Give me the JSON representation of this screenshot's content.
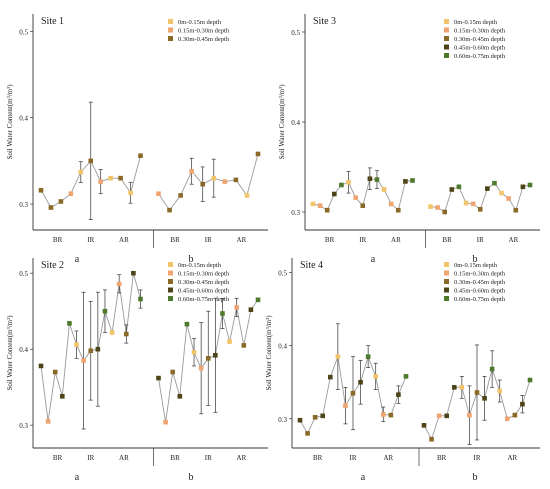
{
  "colors": {
    "d1": "#f2c46a",
    "d2": "#f0a470",
    "d3": "#8a6a26",
    "d4": "#4d4417",
    "d5": "#4e7a2c",
    "line": "#9a9a9a"
  },
  "chart_data": [
    {
      "type": "scatter",
      "title": "Site 1",
      "ylabel": "Soil Water Content(m³/m³)",
      "ylim": [
        0.27,
        0.52
      ],
      "yticks": [
        0.3,
        0.4,
        0.5
      ],
      "ytick_labels": [
        "0.3",
        "0.4",
        "0.5"
      ],
      "groups": [
        "BR",
        "IR",
        "AR"
      ],
      "panels": [
        "a",
        "b"
      ],
      "legend": [
        "0m-0.15m depth",
        "0.15m-0.30m depth",
        "0.30m-0.45m depth"
      ],
      "series_colors": [
        "d1",
        "d2",
        "d3"
      ],
      "sequences": [
        [
          {
            "y": 0.316,
            "c": 2
          },
          {
            "y": 0.296,
            "c": 2
          },
          {
            "y": 0.303,
            "c": 2
          },
          {
            "y": 0.312,
            "c": 1
          },
          {
            "y": 0.337,
            "c": 0,
            "err": 0.012
          },
          {
            "y": 0.35,
            "c": 2,
            "err": 0.068
          },
          {
            "y": 0.326,
            "c": 1,
            "err": 0.014
          },
          {
            "y": 0.33,
            "c": 0
          },
          {
            "y": 0.33,
            "c": 2
          },
          {
            "y": 0.313,
            "c": 0,
            "err": 0.012
          },
          {
            "y": 0.356,
            "c": 2
          }
        ],
        [
          {
            "y": 0.312,
            "c": 1
          },
          {
            "y": 0.293,
            "c": 2
          },
          {
            "y": 0.31,
            "c": 2
          },
          {
            "y": 0.338,
            "c": 1,
            "err": 0.015
          },
          {
            "y": 0.323,
            "c": 2,
            "err": 0.02
          },
          {
            "y": 0.33,
            "c": 0,
            "err": 0.022
          },
          {
            "y": 0.326,
            "c": 1
          },
          {
            "y": 0.328,
            "c": 2
          },
          {
            "y": 0.31,
            "c": 0
          },
          {
            "y": 0.358,
            "c": 2
          }
        ]
      ]
    },
    {
      "type": "scatter",
      "title": "Site 3",
      "ylabel": "Soil Water Content(m³/m³)",
      "ylim": [
        0.28,
        0.52
      ],
      "yticks": [
        0.3,
        0.4,
        0.5
      ],
      "ytick_labels": [
        "0.3",
        "0.4",
        "0.5"
      ],
      "groups": [
        "BR",
        "IR",
        "AR"
      ],
      "panels": [
        "a",
        "b"
      ],
      "legend": [
        "0m-0.15m depth",
        "0.15m-0.30m depth",
        "0.30m-0.45m depth",
        "0.45m-0.60m depth",
        "0.60m-0.75m depth"
      ],
      "series_colors": [
        "d1",
        "d2",
        "d3",
        "d4",
        "d5"
      ],
      "sequences": [
        [
          {
            "y": 0.309,
            "c": 0
          },
          {
            "y": 0.307,
            "c": 1
          },
          {
            "y": 0.302,
            "c": 2
          },
          {
            "y": 0.32,
            "c": 3
          },
          {
            "y": 0.33,
            "c": 4
          },
          {
            "y": 0.333,
            "c": 0,
            "err": 0.012
          },
          {
            "y": 0.316,
            "c": 1
          },
          {
            "y": 0.307,
            "c": 2
          },
          {
            "y": 0.337,
            "c": 3,
            "err": 0.012
          },
          {
            "y": 0.336,
            "c": 4,
            "err": 0.01
          },
          {
            "y": 0.325,
            "c": 0
          },
          {
            "y": 0.309,
            "c": 1
          },
          {
            "y": 0.302,
            "c": 2
          },
          {
            "y": 0.334,
            "c": 3
          },
          {
            "y": 0.335,
            "c": 4
          }
        ],
        [
          {
            "y": 0.306,
            "c": 0
          },
          {
            "y": 0.305,
            "c": 1
          },
          {
            "y": 0.3,
            "c": 2
          },
          {
            "y": 0.325,
            "c": 3
          },
          {
            "y": 0.328,
            "c": 4
          },
          {
            "y": 0.31,
            "c": 0
          },
          {
            "y": 0.309,
            "c": 1
          },
          {
            "y": 0.303,
            "c": 2
          },
          {
            "y": 0.326,
            "c": 3
          },
          {
            "y": 0.332,
            "c": 4
          },
          {
            "y": 0.321,
            "c": 0
          },
          {
            "y": 0.315,
            "c": 1
          },
          {
            "y": 0.302,
            "c": 2
          },
          {
            "y": 0.328,
            "c": 3
          },
          {
            "y": 0.33,
            "c": 4
          }
        ]
      ]
    },
    {
      "type": "scatter",
      "title": "Site 2",
      "ylabel": "Soil Water Content(m³/m³)",
      "ylim": [
        0.27,
        0.52
      ],
      "yticks": [
        0.3,
        0.4,
        0.5
      ],
      "ytick_labels": [
        "0.3",
        "0.4",
        "0.5"
      ],
      "groups": [
        "BR",
        "IR",
        "AR"
      ],
      "panels": [
        "a",
        "b"
      ],
      "legend": [
        "0m-0.15m depth",
        "0.15m-0.30m depth",
        "0.30m-0.45m depth",
        "0.45m-0.60m depth",
        "0.60m-0.75m depth"
      ],
      "series_colors": [
        "d1",
        "d2",
        "d3",
        "d4",
        "d5"
      ],
      "sequences": [
        [
          {
            "y": 0.378,
            "c": 3
          },
          {
            "y": 0.305,
            "c": 1
          },
          {
            "y": 0.37,
            "c": 2
          },
          {
            "y": 0.338,
            "c": 3
          },
          {
            "y": 0.434,
            "c": 4
          },
          {
            "y": 0.406,
            "c": 0,
            "err": 0.018
          },
          {
            "y": 0.385,
            "c": 1,
            "err": 0.09
          },
          {
            "y": 0.398,
            "c": 2,
            "err": 0.065
          },
          {
            "y": 0.4,
            "c": 3,
            "err": 0.075
          },
          {
            "y": 0.45,
            "c": 4,
            "err": 0.028
          },
          {
            "y": 0.422,
            "c": 0
          },
          {
            "y": 0.486,
            "c": 1,
            "err": 0.012
          },
          {
            "y": 0.42,
            "c": 2,
            "err": 0.012
          },
          {
            "y": 0.5,
            "c": 3
          },
          {
            "y": 0.466,
            "c": 4,
            "err": 0.012
          }
        ],
        [
          {
            "y": 0.362,
            "c": 3
          },
          {
            "y": 0.304,
            "c": 1
          },
          {
            "y": 0.37,
            "c": 2
          },
          {
            "y": 0.338,
            "c": 3
          },
          {
            "y": 0.433,
            "c": 4
          },
          {
            "y": 0.396,
            "c": 0,
            "err": 0.018
          },
          {
            "y": 0.375,
            "c": 1,
            "err": 0.06
          },
          {
            "y": 0.388,
            "c": 2,
            "err": 0.062
          },
          {
            "y": 0.392,
            "c": 3,
            "err": 0.075
          },
          {
            "y": 0.447,
            "c": 4,
            "err": 0.02
          },
          {
            "y": 0.41,
            "c": 0
          },
          {
            "y": 0.455,
            "c": 1,
            "err": 0.012
          },
          {
            "y": 0.405,
            "c": 2
          },
          {
            "y": 0.452,
            "c": 3
          },
          {
            "y": 0.465,
            "c": 4
          }
        ]
      ]
    },
    {
      "type": "scatter",
      "title": "Site 4",
      "ylabel": "Soil Water Content(m³/m³)",
      "ylim": [
        0.26,
        0.52
      ],
      "yticks": [
        0.3,
        0.4,
        0.5
      ],
      "ytick_labels": [
        "0.3",
        "0.4",
        "0.5"
      ],
      "groups": [
        "BR",
        "IR",
        "AR"
      ],
      "panels": [
        "a",
        "b"
      ],
      "legend": [
        "0m-0.15m depth",
        "0.15m-0.30m depth",
        "0.30m-0.45m depth",
        "0.45m-0.60m depth",
        "0.60m-0.75m depth"
      ],
      "series_colors": [
        "d1",
        "d2",
        "d3",
        "d4",
        "d5"
      ],
      "sequences": [
        [
          {
            "y": 0.298,
            "c": 3
          },
          {
            "y": 0.28,
            "c": 2
          },
          {
            "y": 0.302,
            "c": 2
          },
          {
            "y": 0.304,
            "c": 3
          },
          {
            "y": 0.357,
            "c": 3
          },
          {
            "y": 0.385,
            "c": 0,
            "err": 0.045
          },
          {
            "y": 0.318,
            "c": 1,
            "err": 0.025
          },
          {
            "y": 0.335,
            "c": 2,
            "err": 0.05
          },
          {
            "y": 0.35,
            "c": 3,
            "err": 0.03
          },
          {
            "y": 0.385,
            "c": 4,
            "err": 0.015
          },
          {
            "y": 0.358,
            "c": 0,
            "err": 0.018
          },
          {
            "y": 0.306,
            "c": 1,
            "err": 0.01
          },
          {
            "y": 0.305,
            "c": 2
          },
          {
            "y": 0.333,
            "c": 3,
            "err": 0.012
          },
          {
            "y": 0.358,
            "c": 4
          }
        ],
        [
          {
            "y": 0.291,
            "c": 3
          },
          {
            "y": 0.272,
            "c": 2
          },
          {
            "y": 0.304,
            "c": 1
          },
          {
            "y": 0.304,
            "c": 3
          },
          {
            "y": 0.343,
            "c": 3
          },
          {
            "y": 0.343,
            "c": 0,
            "err": 0.015
          },
          {
            "y": 0.305,
            "c": 1,
            "err": 0.04
          },
          {
            "y": 0.336,
            "c": 2,
            "err": 0.065
          },
          {
            "y": 0.328,
            "c": 3,
            "err": 0.03
          },
          {
            "y": 0.368,
            "c": 4,
            "err": 0.025
          },
          {
            "y": 0.338,
            "c": 0,
            "err": 0.015
          },
          {
            "y": 0.3,
            "c": 1
          },
          {
            "y": 0.305,
            "c": 2
          },
          {
            "y": 0.32,
            "c": 3,
            "err": 0.012
          },
          {
            "y": 0.353,
            "c": 4
          }
        ]
      ]
    }
  ]
}
